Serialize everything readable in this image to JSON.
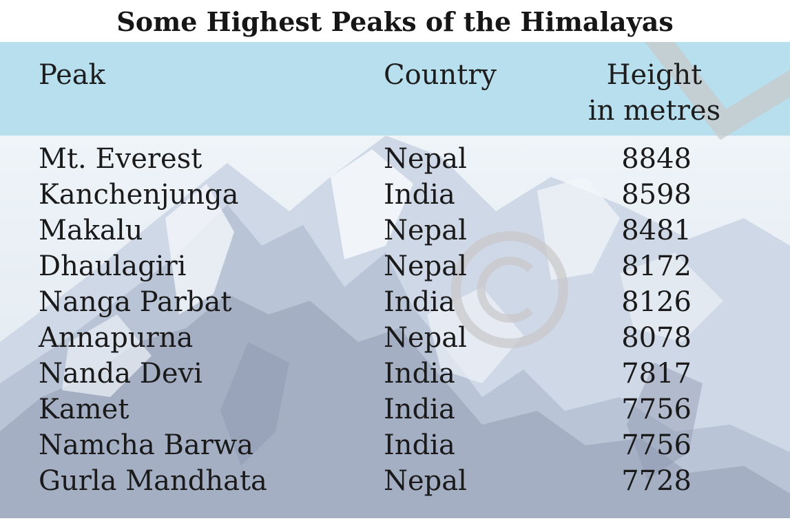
{
  "title": "Some Highest Peaks of the Himalayas",
  "table": {
    "headers": {
      "peak": "Peak",
      "country": "Country",
      "height_line1": "Height",
      "height_line2": "in metres"
    },
    "rows": [
      {
        "peak": "Mt. Everest",
        "country": "Nepal",
        "height": "8848"
      },
      {
        "peak": "Kanchenjunga",
        "country": "India",
        "height": "8598"
      },
      {
        "peak": "Makalu",
        "country": "Nepal",
        "height": "8481"
      },
      {
        "peak": "Dhaulagiri",
        "country": "Nepal",
        "height": "8172"
      },
      {
        "peak": "Nanga Parbat",
        "country": "India",
        "height": "8126"
      },
      {
        "peak": "Annapurna",
        "country": "Nepal",
        "height": "8078"
      },
      {
        "peak": "Nanda Devi",
        "country": "India",
        "height": "7817"
      },
      {
        "peak": "Kamet",
        "country": "India",
        "height": "7756"
      },
      {
        "peak": "Namcha Barwa",
        "country": "India",
        "height": "7756"
      },
      {
        "peak": "Gurla Mandhata",
        "country": "Nepal",
        "height": "7728"
      }
    ]
  },
  "colors": {
    "header_band": "#b7dfee",
    "text": "#1a1a1a",
    "watermark": "#c8c8c8"
  },
  "icons": {
    "watermark": "copyright-watermark-icon",
    "background": "snowy-mountain-photo"
  }
}
